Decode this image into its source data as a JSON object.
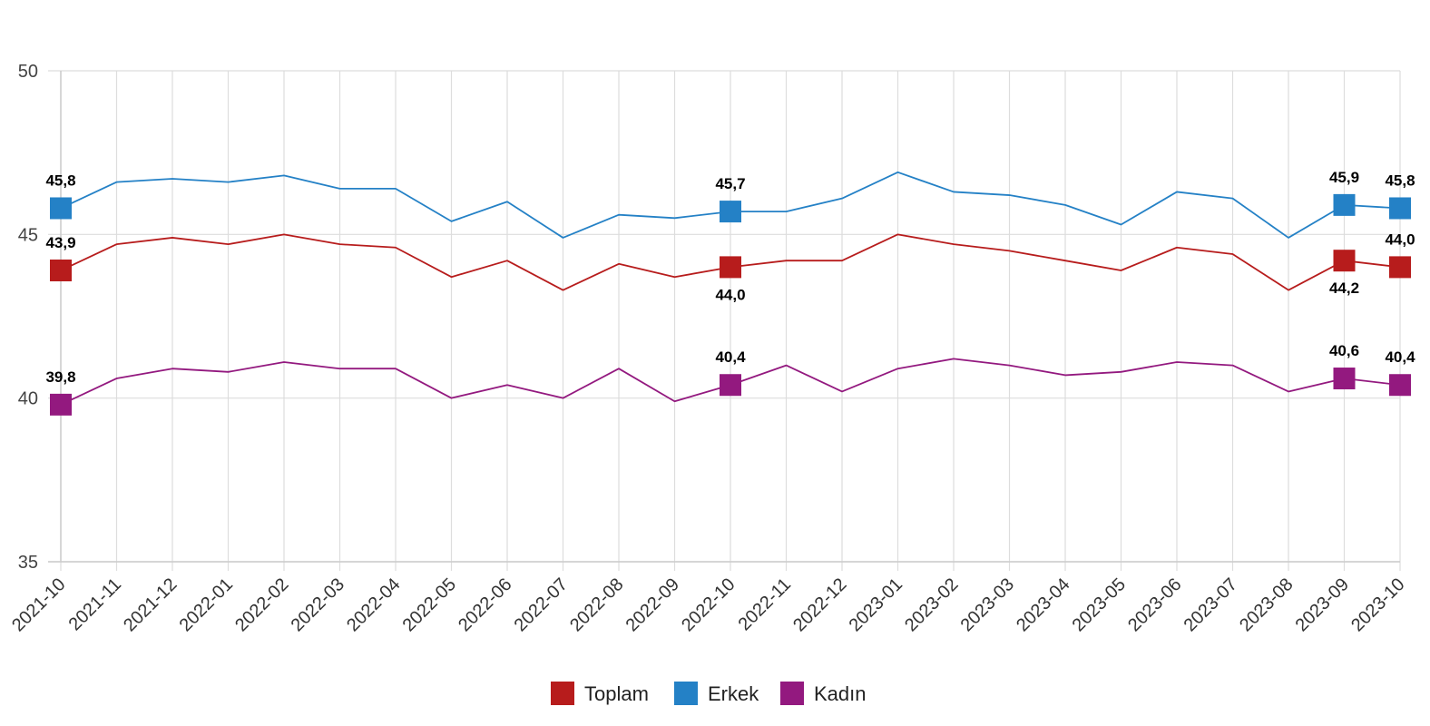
{
  "chart_data": {
    "type": "line",
    "title": "",
    "xlabel": "",
    "ylabel": "",
    "ylim": [
      35,
      50
    ],
    "yticks": [
      35,
      40,
      45,
      50
    ],
    "grid": true,
    "legend_position": "bottom-center",
    "categories": [
      "2021-10",
      "2021-11",
      "2021-12",
      "2022-01",
      "2022-02",
      "2022-03",
      "2022-04",
      "2022-05",
      "2022-06",
      "2022-07",
      "2022-08",
      "2022-09",
      "2022-10",
      "2022-11",
      "2022-12",
      "2023-01",
      "2023-02",
      "2023-03",
      "2023-04",
      "2023-05",
      "2023-06",
      "2023-07",
      "2023-08",
      "2023-09",
      "2023-10"
    ],
    "series": [
      {
        "name": "Toplam",
        "color": "#b71c1c",
        "values": [
          43.9,
          44.7,
          44.9,
          44.7,
          45.0,
          44.7,
          44.6,
          43.7,
          44.2,
          43.3,
          44.1,
          43.7,
          44.0,
          44.2,
          44.2,
          45.0,
          44.7,
          44.5,
          44.2,
          43.9,
          44.6,
          44.4,
          43.3,
          44.2,
          44.0
        ],
        "highlights": [
          {
            "index": 0,
            "label": "43,9",
            "pos": "above"
          },
          {
            "index": 12,
            "label": "44,0",
            "pos": "below"
          },
          {
            "index": 23,
            "label": "44,2",
            "pos": "below"
          },
          {
            "index": 24,
            "label": "44,0",
            "pos": "above"
          }
        ]
      },
      {
        "name": "Erkek",
        "color": "#2481c6",
        "values": [
          45.8,
          46.6,
          46.7,
          46.6,
          46.8,
          46.4,
          46.4,
          45.4,
          46.0,
          44.9,
          45.6,
          45.5,
          45.7,
          45.7,
          46.1,
          46.9,
          46.3,
          46.2,
          45.9,
          45.3,
          46.3,
          46.1,
          44.9,
          45.9,
          45.8
        ],
        "highlights": [
          {
            "index": 0,
            "label": "45,8",
            "pos": "above"
          },
          {
            "index": 12,
            "label": "45,7",
            "pos": "above"
          },
          {
            "index": 23,
            "label": "45,9",
            "pos": "above"
          },
          {
            "index": 24,
            "label": "45,8",
            "pos": "above"
          }
        ]
      },
      {
        "name": "Kadın",
        "color": "#93197f",
        "values": [
          39.8,
          40.6,
          40.9,
          40.8,
          41.1,
          40.9,
          40.9,
          40.0,
          40.4,
          40.0,
          40.9,
          39.9,
          40.4,
          41.0,
          40.2,
          40.9,
          41.2,
          41.0,
          40.7,
          40.8,
          41.1,
          41.0,
          40.2,
          40.6,
          40.4
        ],
        "highlights": [
          {
            "index": 0,
            "label": "39,8",
            "pos": "above"
          },
          {
            "index": 12,
            "label": "40,4",
            "pos": "above"
          },
          {
            "index": 23,
            "label": "40,6",
            "pos": "above"
          },
          {
            "index": 24,
            "label": "40,4",
            "pos": "above"
          }
        ]
      }
    ]
  }
}
